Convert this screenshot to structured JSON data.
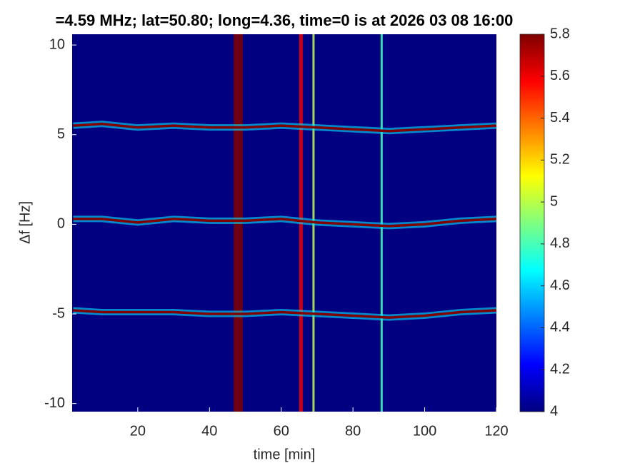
{
  "chart_data": {
    "type": "spectrogram",
    "title": "=4.59 MHz;  lat=50.80; long=4.36, time=0 is at 2026 03 08 16:00",
    "xlabel": "time [min]",
    "ylabel": "Δf [Hz]",
    "xlim": [
      1.7,
      120
    ],
    "ylim": [
      -10.45,
      10.6
    ],
    "xticks": [
      20,
      40,
      60,
      80,
      100,
      120
    ],
    "yticks": [
      -10,
      -5,
      0,
      5,
      10
    ],
    "clim": [
      4,
      5.8
    ],
    "cticks": [
      4,
      4.2,
      4.4,
      4.6,
      4.8,
      5,
      5.2,
      5.4,
      5.6,
      5.8
    ],
    "background": 4,
    "x": [
      2,
      10,
      20,
      30,
      40,
      50,
      60,
      70,
      80,
      90,
      100,
      110,
      120
    ],
    "traces": [
      {
        "values": [
          5.5,
          5.6,
          5.4,
          5.5,
          5.4,
          5.4,
          5.5,
          5.4,
          5.3,
          5.2,
          5.3,
          5.4,
          5.5
        ],
        "level": 5.8
      },
      {
        "values": [
          0.3,
          0.3,
          0.1,
          0.3,
          0.2,
          0.2,
          0.3,
          0.1,
          0,
          -0.1,
          0,
          0.2,
          0.3
        ],
        "level": 5.8
      },
      {
        "values": [
          -4.8,
          -4.9,
          -4.9,
          -4.9,
          -5,
          -5,
          -4.9,
          -5,
          -5.1,
          -5.2,
          -5.1,
          -4.9,
          -4.8
        ],
        "level": 5.8
      }
    ],
    "bands": {
      "x": [
        48,
        65.5,
        69,
        88
      ],
      "widths": [
        2.5,
        1,
        0.6,
        0.6
      ],
      "levels": [
        5.8,
        5.6,
        5.0,
        4.8
      ]
    }
  }
}
